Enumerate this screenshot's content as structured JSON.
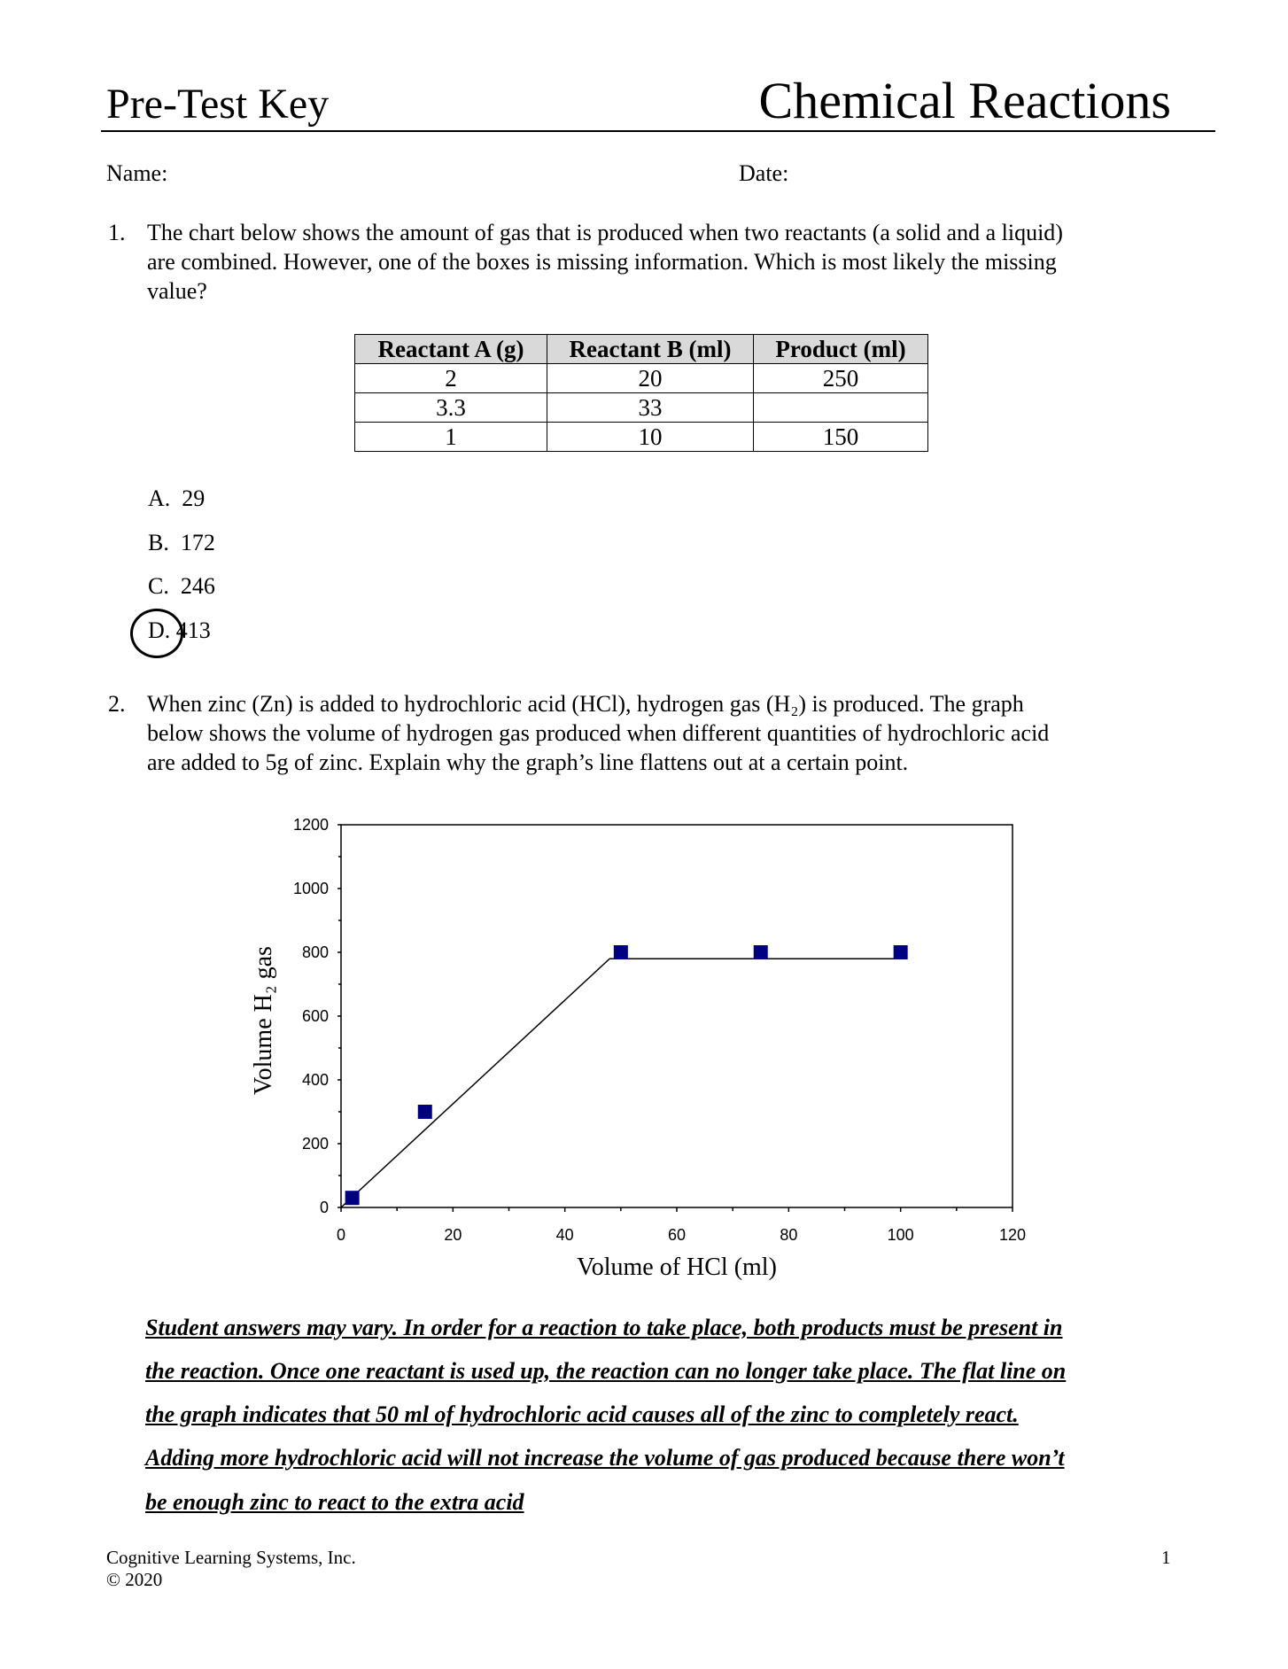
{
  "header": {
    "left_title": "Pre-Test Key",
    "right_title": "Chemical Reactions"
  },
  "fields": {
    "name": "Name:",
    "date": "Date:"
  },
  "question1": {
    "number": "1.",
    "lines": [
      "The chart below shows the amount of gas that is produced when two reactants (a solid and a liquid)",
      "are combined.  However, one of the boxes is missing information.  Which is most likely the missing",
      "value?"
    ],
    "table": {
      "headers": [
        "Reactant A (g)",
        "Reactant B (ml)",
        "Product (ml)"
      ],
      "rows": [
        [
          "2",
          "20",
          "250"
        ],
        [
          "3.3",
          "33",
          ""
        ],
        [
          "1",
          "10",
          "150"
        ]
      ]
    },
    "options": [
      {
        "letter": "A.",
        "value": "29"
      },
      {
        "letter": "B.",
        "value": "172"
      },
      {
        "letter": "C.",
        "value": "246"
      },
      {
        "letter": "D.",
        "value": "413",
        "circled": true
      }
    ]
  },
  "question2": {
    "number": "2.",
    "lines": [
      "When zinc (Zn) is added to hydrochloric acid (HCl), hydrogen gas (H₂) is produced.  The graph",
      "below shows the volume of hydrogen gas produced when different quantities of hydrochloric acid",
      "are added to 5g of zinc.  Explain why the graph’s line flattens out at a certain point."
    ],
    "answer_lines": [
      "Student answers may vary.  In order for a reaction to take place, both products must be present in",
      "the reaction.  Once one reactant is used up, the reaction can no longer take place.  The flat line on",
      "the graph indicates that 50 ml of hydrochloric acid causes all of the zinc to completely react.",
      "Adding more hydrochloric acid will not increase the volume of gas produced because there won’t",
      "be enough zinc to react to the extra acid"
    ]
  },
  "chart_data": {
    "type": "scatter",
    "xlabel": "Volume of HCl (ml)",
    "ylabel": "Volume H₂ gas",
    "xlim": [
      0,
      120
    ],
    "ylim": [
      0,
      1200
    ],
    "xticks": [
      "0",
      "20",
      "40",
      "60",
      "80",
      "100",
      "120"
    ],
    "yticks": [
      "0",
      "200",
      "400",
      "600",
      "800",
      "1000",
      "1200"
    ],
    "points": [
      [
        2,
        30
      ],
      [
        15,
        300
      ],
      [
        50,
        800
      ],
      [
        75,
        800
      ],
      [
        100,
        800
      ]
    ],
    "trend_line": [
      [
        0,
        0
      ],
      [
        48,
        780
      ],
      [
        100,
        780
      ]
    ],
    "marker_color": "#000080",
    "grid": false
  },
  "footer": {
    "company": "Cognitive Learning Systems, Inc.",
    "copyright": "© 2020",
    "page": "1"
  }
}
